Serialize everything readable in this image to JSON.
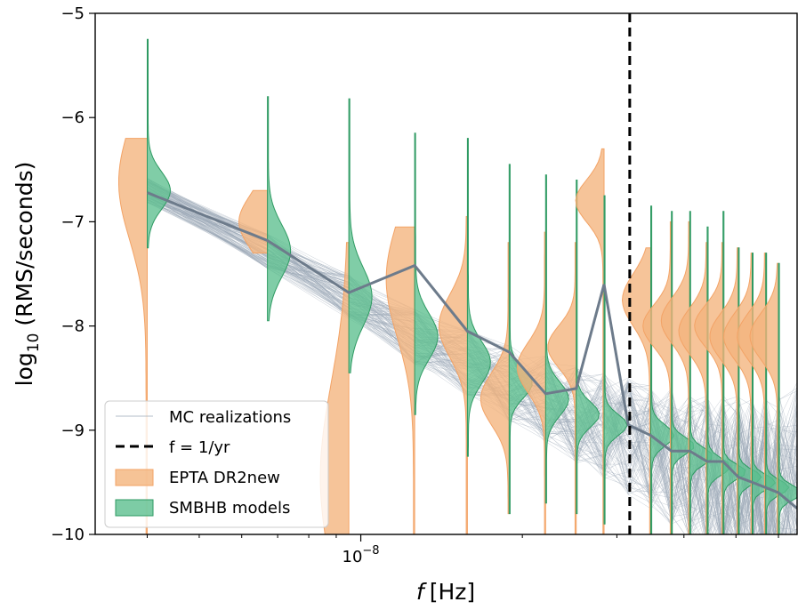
{
  "chart_data": {
    "type": "violin",
    "xlabel_italic": "f",
    "xlabel_unit": "[Hz]",
    "ylabel_base": "log",
    "ylabel_sub": "10",
    "ylabel_rest": "(RMS/seconds)",
    "x_scale": "log",
    "xlim": [
      3.2e-09,
      6.5e-08
    ],
    "ylim": [
      -10,
      -5
    ],
    "yticks": [
      -10,
      -9,
      -8,
      -7,
      -6,
      -5
    ],
    "ytick_labels": [
      "−10",
      "−9",
      "−8",
      "−7",
      "−6",
      "−5"
    ],
    "xtick_major": {
      "base": "10",
      "exp": "−8",
      "value": 1e-08
    },
    "xticks_minor": [
      4e-09,
      5e-09,
      6e-09,
      7e-09,
      8e-09,
      9e-09,
      2e-08,
      3e-08,
      4e-08,
      5e-08,
      6e-08
    ],
    "grid": false,
    "legend_position": "lower-left",
    "vline": {
      "x": 3.17e-08,
      "style": "dashed",
      "color": "#000000"
    },
    "colors": {
      "epta": "#f4b47c",
      "epta_edge": "#f3a366",
      "smbhb": "#5cbf8e",
      "smbhb_edge": "#2e9a62",
      "mc_lines": "#9aa8b6",
      "median_line": "#6d7b8b"
    },
    "legend": [
      {
        "label": "MC realizations",
        "kind": "thin-line"
      },
      {
        "label": "f = 1/yr",
        "kind": "dashed-line"
      },
      {
        "label": "EPTA DR2new",
        "kind": "patch-epta"
      },
      {
        "label": "SMBHB models",
        "kind": "patch-smbhb"
      }
    ],
    "frequency_bins": [
      {
        "f": 4e-09,
        "epta_mode": -6.62,
        "epta_width": 0.55,
        "epta_top": -6.2,
        "epta_bottom": -10.0,
        "smbhb_mode": -6.7,
        "smbhb_width": 0.18,
        "smbhb_top": -5.25,
        "smbhb_bottom": -7.25
      },
      {
        "f": 6.7e-09,
        "epta_mode": -7.0,
        "epta_width": 0.25,
        "epta_top": -6.7,
        "epta_bottom": -7.3,
        "smbhb_mode": -7.28,
        "smbhb_width": 0.25,
        "smbhb_top": -5.8,
        "smbhb_bottom": -7.95
      },
      {
        "f": 9.5e-09,
        "epta_mode": -9.45,
        "epta_width": 0.9,
        "epta_top": -7.2,
        "epta_bottom": -10.0,
        "smbhb_mode": -7.72,
        "smbhb_width": 0.28,
        "smbhb_top": -5.82,
        "smbhb_bottom": -8.45
      },
      {
        "f": 1.26e-08,
        "epta_mode": -7.55,
        "epta_width": 0.55,
        "epta_top": -7.05,
        "epta_bottom": -10.0,
        "smbhb_mode": -8.1,
        "smbhb_width": 0.22,
        "smbhb_top": -6.15,
        "smbhb_bottom": -8.85
      },
      {
        "f": 1.58e-08,
        "epta_mode": -8.0,
        "epta_width": 0.3,
        "epta_top": -6.95,
        "epta_bottom": -10.0,
        "smbhb_mode": -8.35,
        "smbhb_width": 0.2,
        "smbhb_top": -6.2,
        "smbhb_bottom": -9.25
      },
      {
        "f": 1.89e-08,
        "epta_mode": -8.7,
        "epta_width": 0.25,
        "epta_top": -7.2,
        "epta_bottom": -9.8,
        "smbhb_mode": -8.55,
        "smbhb_width": 0.14,
        "smbhb_top": -6.45,
        "smbhb_bottom": -9.8
      },
      {
        "f": 2.21e-08,
        "epta_mode": -8.4,
        "epta_width": 0.24,
        "epta_top": -7.1,
        "epta_bottom": -10.0,
        "smbhb_mode": -8.7,
        "smbhb_width": 0.16,
        "smbhb_top": -6.55,
        "smbhb_bottom": -9.7
      },
      {
        "f": 2.52e-08,
        "epta_mode": -8.2,
        "epta_width": 0.2,
        "epta_top": -7.2,
        "epta_bottom": -10.0,
        "smbhb_mode": -8.85,
        "smbhb_width": 0.12,
        "smbhb_top": -6.6,
        "smbhb_bottom": -9.8
      },
      {
        "f": 2.84e-08,
        "epta_mode": -6.8,
        "epta_width": 0.2,
        "epta_top": -6.3,
        "epta_bottom": -10.0,
        "smbhb_mode": -8.95,
        "smbhb_width": 0.1,
        "smbhb_top": -6.75,
        "smbhb_bottom": -9.9
      },
      {
        "f": 3.47e-08,
        "epta_mode": -7.75,
        "epta_width": 0.25,
        "epta_top": -7.25,
        "epta_bottom": -10.0,
        "smbhb_mode": -9.05,
        "smbhb_width": 0.1,
        "smbhb_top": -6.85,
        "smbhb_bottom": -10.0
      },
      {
        "f": 3.79e-08,
        "epta_mode": -8.0,
        "epta_width": 0.2,
        "epta_top": -7.0,
        "epta_bottom": -10.0,
        "smbhb_mode": -9.15,
        "smbhb_width": 0.08,
        "smbhb_top": -6.9,
        "smbhb_bottom": -10.0
      },
      {
        "f": 4.1e-08,
        "epta_mode": -7.95,
        "epta_width": 0.22,
        "epta_top": -7.0,
        "epta_bottom": -10.0,
        "smbhb_mode": -9.25,
        "smbhb_width": 0.08,
        "smbhb_top": -6.9,
        "smbhb_bottom": -10.0
      },
      {
        "f": 4.42e-08,
        "epta_mode": -8.05,
        "epta_width": 0.22,
        "epta_top": -7.2,
        "epta_bottom": -10.0,
        "smbhb_mode": -9.35,
        "smbhb_width": 0.08,
        "smbhb_top": -7.05,
        "smbhb_bottom": -10.0
      },
      {
        "f": 4.73e-08,
        "epta_mode": -8.0,
        "epta_width": 0.2,
        "epta_top": -7.2,
        "epta_bottom": -10.0,
        "smbhb_mode": -9.4,
        "smbhb_width": 0.07,
        "smbhb_top": -6.9,
        "smbhb_bottom": -10.0
      },
      {
        "f": 5.05e-08,
        "epta_mode": -8.1,
        "epta_width": 0.22,
        "epta_top": -7.25,
        "epta_bottom": -10.0,
        "smbhb_mode": -9.45,
        "smbhb_width": 0.07,
        "smbhb_top": -7.25,
        "smbhb_bottom": -10.0
      },
      {
        "f": 5.36e-08,
        "epta_mode": -8.1,
        "epta_width": 0.22,
        "epta_top": -7.3,
        "epta_bottom": -10.0,
        "smbhb_mode": -9.5,
        "smbhb_width": 0.07,
        "smbhb_top": -7.3,
        "smbhb_bottom": -10.0
      },
      {
        "f": 5.68e-08,
        "epta_mode": -8.1,
        "epta_width": 0.22,
        "epta_top": -7.3,
        "epta_bottom": -10.0,
        "smbhb_mode": -9.55,
        "smbhb_width": 0.07,
        "smbhb_top": -7.3,
        "smbhb_bottom": -10.0
      },
      {
        "f": 6e-08,
        "epta_mode": -8.1,
        "epta_width": 0.22,
        "epta_top": -7.4,
        "epta_bottom": -10.0,
        "smbhb_mode": -9.6,
        "smbhb_width": 0.07,
        "smbhb_top": -7.4,
        "smbhb_bottom": -10.0
      }
    ],
    "median_realization": {
      "x": [
        4e-09,
        6.7e-09,
        9.5e-09,
        1.26e-08,
        1.58e-08,
        1.89e-08,
        2.21e-08,
        2.52e-08,
        2.84e-08,
        3.15e-08,
        3.47e-08,
        3.79e-08,
        4.1e-08,
        4.42e-08,
        4.73e-08,
        5.05e-08,
        5.36e-08,
        5.68e-08,
        6e-08,
        6.5e-08
      ],
      "y": [
        -6.72,
        -7.18,
        -7.68,
        -7.42,
        -8.05,
        -8.25,
        -8.65,
        -8.6,
        -7.6,
        -8.95,
        -9.05,
        -9.2,
        -9.2,
        -9.3,
        -9.3,
        -9.45,
        -9.5,
        -9.55,
        -9.6,
        -9.75
      ]
    },
    "mc_realization_count": 120
  }
}
